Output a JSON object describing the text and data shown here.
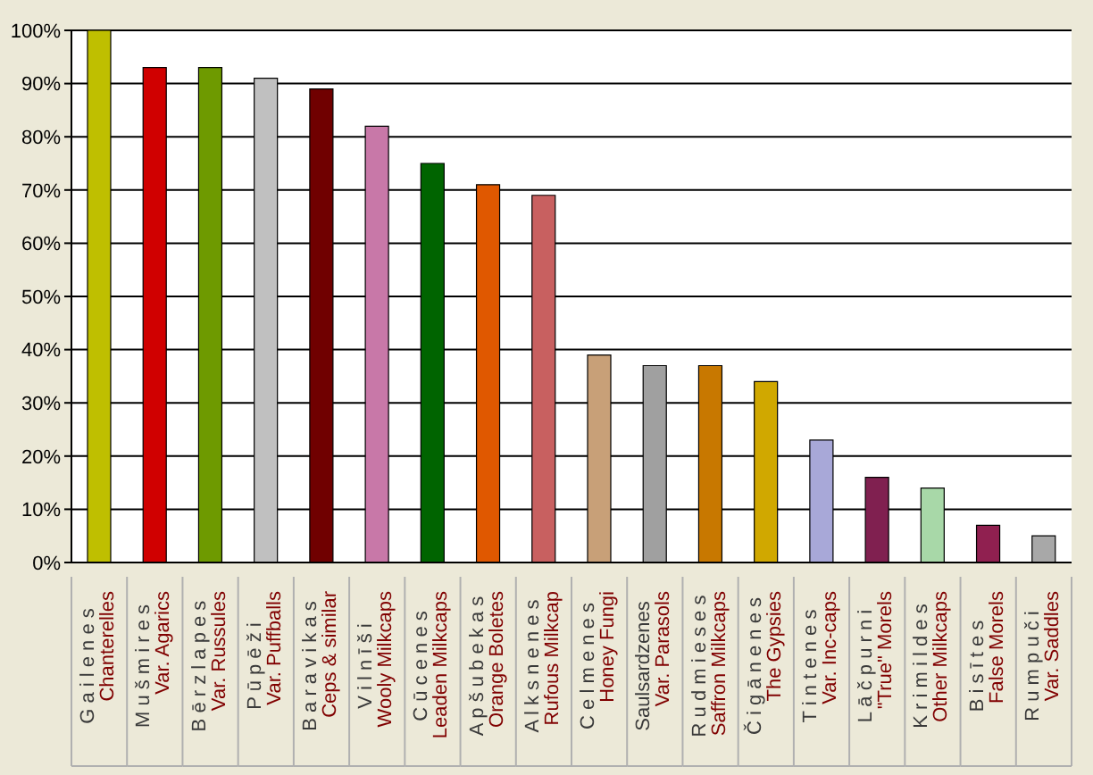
{
  "chart_data": {
    "type": "bar",
    "categories": [
      "G a i l e n e s\nChanterelles",
      "M u š m i r e s\nVar. Agarics",
      "B ē r z l a p e s\nVar. Russules",
      "P ū p ē ž i\nVar. Puffballs",
      "B a r a v i k a s\nCeps & similar",
      "V i l n ī š i\nWooly Milkcaps",
      "C ū c e n e s\nLeaden Milkcaps",
      "A p š u b e k a s\nOrange Boletes",
      "A l k s n e n e s\nRufous Milkcap",
      "C e l m e n e s\nHoney Fungi",
      "Saulsardzenes\nVar. Parasols",
      "R u d m i e s e s\nSaffron Milkcaps",
      "Č i g ā n e n e s\nThe Gypsies",
      "T i n t e n e s\nVar. Inc-caps",
      "L ā č p u r n i\n\"True\" Morels",
      "K r i m i l d e s\nOther Milkcaps",
      "B i s ī t e s\nFalse Morels",
      "R u m p u č i\nVar. Saddles"
    ],
    "values": [
      100,
      93,
      93,
      91,
      89,
      82,
      75,
      71,
      69,
      39,
      37,
      37,
      34,
      23,
      16,
      14,
      7,
      5
    ],
    "colors": [
      "#bfbf00",
      "#d00000",
      "#6e9a00",
      "#c0c0c0",
      "#700000",
      "#c878a8",
      "#006400",
      "#e05800",
      "#c86060",
      "#c8a078",
      "#a0a0a0",
      "#c87800",
      "#d0a800",
      "#a8a8d8",
      "#802050",
      "#a8d8a8",
      "#902050",
      "#a8a8a8"
    ],
    "ylim": [
      0,
      100
    ],
    "yticks": [
      {
        "value": 0,
        "label": "0%"
      },
      {
        "value": 10,
        "label": "10%"
      },
      {
        "value": 20,
        "label": "20%"
      },
      {
        "value": 30,
        "label": "30%"
      },
      {
        "value": 40,
        "label": "40%"
      },
      {
        "value": 50,
        "label": "50%"
      },
      {
        "value": 60,
        "label": "60%"
      },
      {
        "value": 70,
        "label": "70%"
      },
      {
        "value": 80,
        "label": "80%"
      },
      {
        "value": 90,
        "label": "90%"
      },
      {
        "value": 100,
        "label": "100%"
      }
    ],
    "grid": "y"
  }
}
